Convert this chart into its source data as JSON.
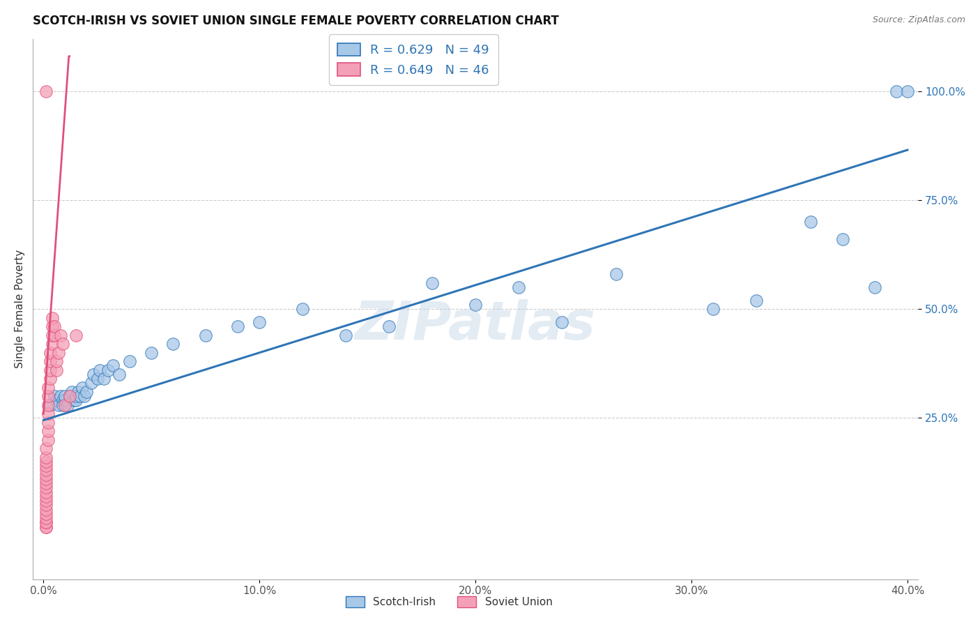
{
  "title": "SCOTCH-IRISH VS SOVIET UNION SINGLE FEMALE POVERTY CORRELATION CHART",
  "source_text": "Source: ZipAtlas.com",
  "ylabel": "Single Female Poverty",
  "watermark": "ZIPatlas",
  "xlim": [
    -0.005,
    0.405
  ],
  "ylim": [
    -0.12,
    1.12
  ],
  "xticks": [
    0.0,
    0.1,
    0.2,
    0.3,
    0.4
  ],
  "xtick_labels": [
    "0.0%",
    "10.0%",
    "20.0%",
    "30.0%",
    "40.0%"
  ],
  "yticks": [
    0.25,
    0.5,
    0.75,
    1.0
  ],
  "ytick_labels": [
    "25.0%",
    "50.0%",
    "75.0%",
    "100.0%"
  ],
  "blue_R": "0.629",
  "blue_N": "49",
  "pink_R": "0.649",
  "pink_N": "46",
  "blue_color": "#a8c8e8",
  "pink_color": "#f4a0b8",
  "blue_line_color": "#2e75b6",
  "pink_line_color": "#e0507a",
  "legend_label_blue": "Scotch-Irish",
  "legend_label_pink": "Soviet Union",
  "blue_scatter_x": [
    0.003,
    0.005,
    0.006,
    0.007,
    0.008,
    0.009,
    0.009,
    0.01,
    0.01,
    0.011,
    0.012,
    0.013,
    0.014,
    0.015,
    0.015,
    0.016,
    0.017,
    0.018,
    0.019,
    0.02,
    0.022,
    0.023,
    0.025,
    0.026,
    0.028,
    0.03,
    0.032,
    0.035,
    0.04,
    0.05,
    0.06,
    0.075,
    0.09,
    0.1,
    0.12,
    0.14,
    0.16,
    0.18,
    0.2,
    0.22,
    0.24,
    0.265,
    0.31,
    0.33,
    0.355,
    0.37,
    0.385,
    0.395,
    0.4
  ],
  "blue_scatter_y": [
    0.28,
    0.3,
    0.29,
    0.28,
    0.3,
    0.29,
    0.28,
    0.29,
    0.3,
    0.28,
    0.3,
    0.31,
    0.29,
    0.29,
    0.3,
    0.31,
    0.3,
    0.32,
    0.3,
    0.31,
    0.33,
    0.35,
    0.34,
    0.36,
    0.34,
    0.36,
    0.37,
    0.35,
    0.38,
    0.4,
    0.42,
    0.44,
    0.46,
    0.47,
    0.5,
    0.44,
    0.46,
    0.56,
    0.51,
    0.55,
    0.47,
    0.58,
    0.5,
    0.52,
    0.7,
    0.66,
    0.55,
    1.0,
    1.0
  ],
  "pink_scatter_x": [
    0.001,
    0.001,
    0.001,
    0.001,
    0.001,
    0.001,
    0.001,
    0.001,
    0.001,
    0.001,
    0.001,
    0.001,
    0.001,
    0.001,
    0.001,
    0.001,
    0.001,
    0.001,
    0.001,
    0.001,
    0.002,
    0.002,
    0.002,
    0.002,
    0.002,
    0.002,
    0.002,
    0.003,
    0.003,
    0.003,
    0.003,
    0.004,
    0.004,
    0.004,
    0.004,
    0.005,
    0.005,
    0.006,
    0.006,
    0.007,
    0.008,
    0.009,
    0.01,
    0.012,
    0.015,
    0.001
  ],
  "pink_scatter_y": [
    0.0,
    0.0,
    0.01,
    0.01,
    0.02,
    0.03,
    0.04,
    0.05,
    0.06,
    0.07,
    0.08,
    0.09,
    0.1,
    0.11,
    0.12,
    0.13,
    0.14,
    0.15,
    0.16,
    0.18,
    0.2,
    0.22,
    0.24,
    0.26,
    0.28,
    0.3,
    0.32,
    0.34,
    0.36,
    0.38,
    0.4,
    0.42,
    0.44,
    0.46,
    0.48,
    0.44,
    0.46,
    0.36,
    0.38,
    0.4,
    0.44,
    0.42,
    0.28,
    0.3,
    0.44,
    1.0
  ],
  "title_fontsize": 12,
  "label_fontsize": 11,
  "tick_fontsize": 11,
  "legend_fontsize": 13
}
